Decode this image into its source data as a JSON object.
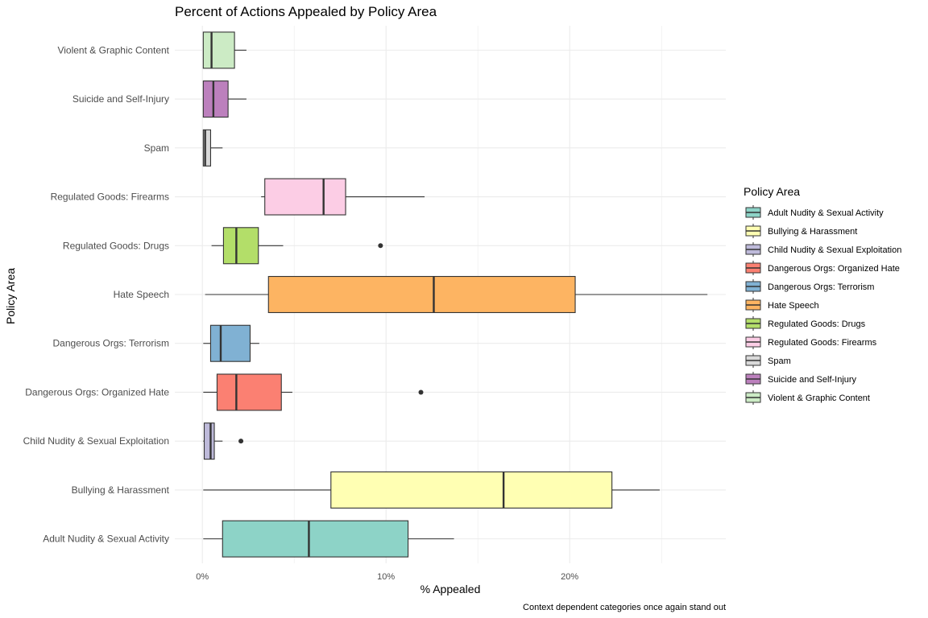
{
  "chart_data": {
    "type": "boxplot",
    "orientation": "horizontal",
    "title": "Percent of Actions Appealed by Policy Area",
    "xlabel": "% Appealed",
    "ylabel": "Policy Area",
    "caption": "Context dependent categories once again stand out",
    "xlim": [
      -1.5,
      28.5
    ],
    "x_ticks": [
      0,
      10,
      20
    ],
    "x_tick_labels": [
      "0%",
      "10%",
      "20%"
    ],
    "grid": true,
    "legend": {
      "title": "Policy Area",
      "position": "right"
    },
    "categories": [
      "Adult Nudity & Sexual Activity",
      "Bullying & Harassment",
      "Child Nudity & Sexual Exploitation",
      "Dangerous Orgs: Organized Hate",
      "Dangerous Orgs: Terrorism",
      "Hate Speech",
      "Regulated Goods: Drugs",
      "Regulated Goods: Firearms",
      "Spam",
      "Suicide and Self-Injury",
      "Violent & Graphic Content"
    ],
    "series": [
      {
        "name": "Adult Nudity & Sexual Activity",
        "color": "#8DD3C7",
        "min": 0.05,
        "q1": 1.1,
        "median": 5.8,
        "q3": 11.2,
        "max": 13.7,
        "outliers": []
      },
      {
        "name": "Bullying & Harassment",
        "color": "#FFFFB3",
        "min": 0.05,
        "q1": 7.0,
        "median": 16.4,
        "q3": 22.3,
        "max": 24.9,
        "outliers": []
      },
      {
        "name": "Child Nudity & Sexual Exploitation",
        "color": "#BEBADA",
        "min": 0.05,
        "q1": 0.1,
        "median": 0.45,
        "q3": 0.65,
        "max": 1.1,
        "outliers": [
          2.1
        ]
      },
      {
        "name": "Dangerous Orgs: Organized Hate",
        "color": "#FB8072",
        "min": 0.05,
        "q1": 0.8,
        "median": 1.85,
        "q3": 4.3,
        "max": 4.9,
        "outliers": [
          11.9
        ]
      },
      {
        "name": "Dangerous Orgs: Terrorism",
        "color": "#80B1D3",
        "min": 0.05,
        "q1": 0.45,
        "median": 1.0,
        "q3": 2.6,
        "max": 3.1,
        "outliers": []
      },
      {
        "name": "Hate Speech",
        "color": "#FDB462",
        "min": 0.15,
        "q1": 3.6,
        "median": 12.6,
        "q3": 20.3,
        "max": 27.5,
        "outliers": []
      },
      {
        "name": "Regulated Goods: Drugs",
        "color": "#B3DE69",
        "min": 0.5,
        "q1": 1.15,
        "median": 1.85,
        "q3": 3.05,
        "max": 4.4,
        "outliers": [
          9.7
        ]
      },
      {
        "name": "Regulated Goods: Firearms",
        "color": "#FCCDE5",
        "min": 3.2,
        "q1": 3.4,
        "median": 6.6,
        "q3": 7.8,
        "max": 12.1,
        "outliers": []
      },
      {
        "name": "Spam",
        "color": "#D9D9D9",
        "min": 0.05,
        "q1": 0.05,
        "median": 0.15,
        "q3": 0.45,
        "max": 1.1,
        "outliers": []
      },
      {
        "name": "Suicide and Self-Injury",
        "color": "#BC80BD",
        "min": 0.05,
        "q1": 0.05,
        "median": 0.6,
        "q3": 1.4,
        "max": 2.4,
        "outliers": []
      },
      {
        "name": "Violent & Graphic Content",
        "color": "#CCEBC5",
        "min": 0.05,
        "q1": 0.05,
        "median": 0.5,
        "q3": 1.75,
        "max": 2.4,
        "outliers": []
      }
    ]
  }
}
